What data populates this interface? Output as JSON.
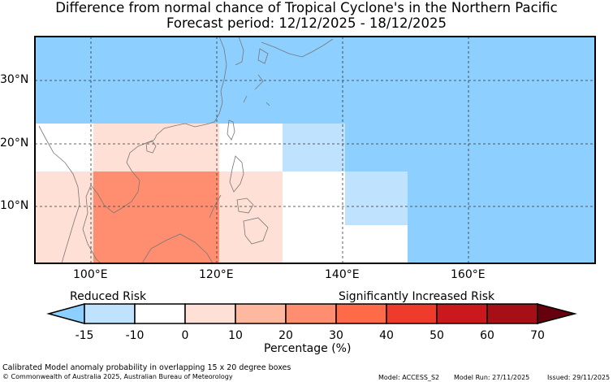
{
  "title": {
    "line1": "Difference from normal chance of Tropical Cyclone's in the Northern Pacific",
    "line2": "Forecast period: 12/12/2025 - 18/12/2025"
  },
  "axes": {
    "lat_labels": [
      "30°N",
      "20°N",
      "10°N"
    ],
    "lon_labels": [
      "100°E",
      "120°E",
      "140°E",
      "160°E"
    ]
  },
  "colorbar": {
    "left_label": "Reduced Risk",
    "right_label": "Significantly Increased Risk",
    "title": "Percentage (%)",
    "ticks": [
      "-15",
      "-10",
      "0",
      "10",
      "20",
      "30",
      "40",
      "50",
      "60",
      "70"
    ],
    "colors": [
      "#bfe3ff",
      "#ffffff",
      "#ffe0d6",
      "#ffb8a0",
      "#ff8e70",
      "#ff6a48",
      "#ef3b2c",
      "#cb181d",
      "#a50f15"
    ],
    "low_extend_color": "#8dcfff",
    "high_extend_color": "#67000d"
  },
  "legend_colors": {
    "reduced": "#8dcfff",
    "reduced_light": "#bfe3ff",
    "neutral": "#ffffff",
    "slight": "#ffe0d6",
    "moderate": "#ff8e70"
  },
  "footer": {
    "note": "Calibrated Model anomaly probability in overlapping 15 x 20 degree boxes",
    "copyright": "© Commonwealth of Australia 2025, Australian Bureau of Meteorology",
    "model": "Model: ACCESS_S2",
    "model_run": "Model Run: 27/11/2025",
    "issued": "Issued: 29/11/2025"
  }
}
